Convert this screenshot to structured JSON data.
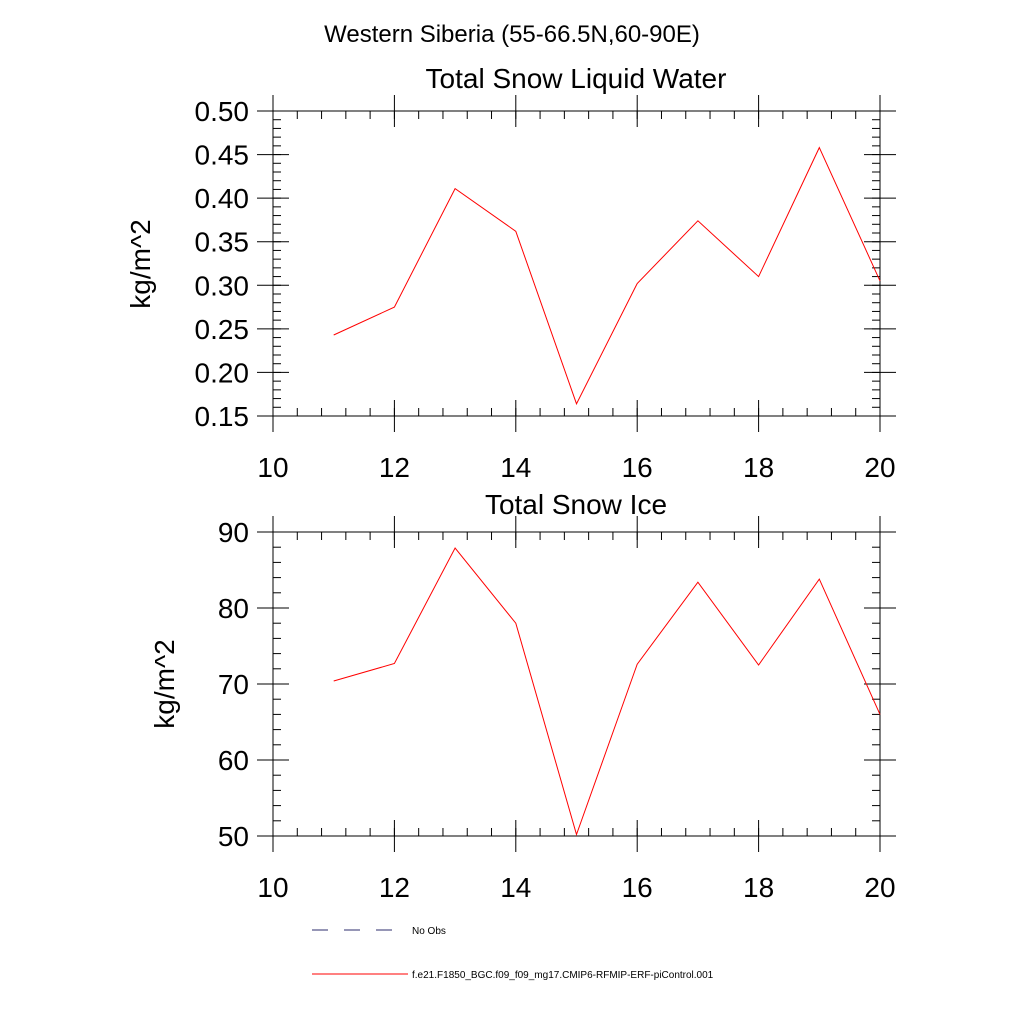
{
  "figure": {
    "title": "Western Siberia (55-66.5N,60-90E)"
  },
  "colors": {
    "series": "#ff0000",
    "obs": "#2e2e6e",
    "axis": "#000000"
  },
  "legend": {
    "placement": "bottom",
    "entries": [
      {
        "label": "No Obs",
        "style": "dashed",
        "color": "#2e2e6e"
      },
      {
        "label": "f.e21.F1850_BGC.f09_f09_mg17.CMIP6-RFMIP-ERF-piControl.001",
        "style": "solid",
        "color": "#ff0000"
      }
    ]
  },
  "chart_data": [
    {
      "type": "line",
      "title": "Total Snow Liquid Water",
      "xlabel": "",
      "ylabel": "kg/m^2",
      "xlim": [
        10,
        20
      ],
      "ylim": [
        0.15,
        0.5
      ],
      "xticks": [
        10,
        12,
        14,
        16,
        18,
        20
      ],
      "xtick_labels": [
        "10",
        "12",
        "14",
        "16",
        "18",
        "20"
      ],
      "yticks": [
        0.15,
        0.2,
        0.25,
        0.3,
        0.35,
        0.4,
        0.45,
        0.5
      ],
      "ytick_labels": [
        "0.15",
        "0.20",
        "0.25",
        "0.30",
        "0.35",
        "0.40",
        "0.45",
        "0.50"
      ],
      "minor_x_step": 0.4,
      "minor_y_step": 0.01,
      "grid": false,
      "series": [
        {
          "color": "#ff0000",
          "x": [
            11,
            12,
            13,
            14,
            15,
            16,
            17,
            18,
            19,
            20
          ],
          "y": [
            0.243,
            0.275,
            0.411,
            0.362,
            0.164,
            0.302,
            0.374,
            0.31,
            0.458,
            0.305
          ]
        }
      ]
    },
    {
      "type": "line",
      "title": "Total Snow Ice",
      "xlabel": "",
      "ylabel": "kg/m^2",
      "xlim": [
        10,
        20
      ],
      "ylim": [
        50,
        90
      ],
      "xticks": [
        10,
        12,
        14,
        16,
        18,
        20
      ],
      "xtick_labels": [
        "10",
        "12",
        "14",
        "16",
        "18",
        "20"
      ],
      "yticks": [
        50,
        60,
        70,
        80,
        90
      ],
      "ytick_labels": [
        "50",
        "60",
        "70",
        "80",
        "90"
      ],
      "minor_x_step": 0.4,
      "minor_y_step": 2,
      "grid": false,
      "series": [
        {
          "color": "#ff0000",
          "x": [
            11,
            12,
            13,
            14,
            15,
            16,
            17,
            18,
            19,
            20
          ],
          "y": [
            70.4,
            72.7,
            87.9,
            78.0,
            50.2,
            72.6,
            83.4,
            72.5,
            83.8,
            66.0
          ]
        }
      ]
    }
  ]
}
